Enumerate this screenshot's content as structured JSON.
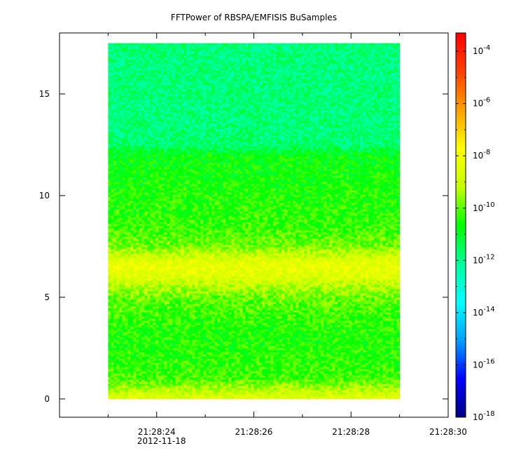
{
  "chart_data": {
    "type": "heatmap",
    "title": "FFTPower of RBSPA/EMFISIS  BuSamples",
    "xlabel": "",
    "ylabel": "",
    "x_ticks": [
      {
        "time": "21:28:24",
        "label": "21:28:24",
        "sublabel": "2012-11-18"
      },
      {
        "time": "21:28:26",
        "label": "21:28:26",
        "sublabel": ""
      },
      {
        "time": "21:28:28",
        "label": "21:28:28",
        "sublabel": ""
      },
      {
        "time": "21:28:30",
        "label": "21:28:30",
        "sublabel": ""
      }
    ],
    "xlim": [
      "21:28:22.0",
      "21:28:30.0"
    ],
    "data_time_range": [
      "21:28:23.0",
      "21:28:29.0"
    ],
    "y_ticks": [
      0,
      5,
      10,
      15
    ],
    "ylim": [
      -0.9,
      18.0
    ],
    "data_y_range": [
      0,
      17.5
    ],
    "zscale": "log",
    "z_ticks": [
      {
        "exp": -18,
        "label": "10",
        "sup": "-18"
      },
      {
        "exp": -16,
        "label": "10",
        "sup": "-16"
      },
      {
        "exp": -14,
        "label": "10",
        "sup": "-14"
      },
      {
        "exp": -12,
        "label": "10",
        "sup": "-12"
      },
      {
        "exp": -10,
        "label": "10",
        "sup": "-10"
      },
      {
        "exp": -8,
        "label": "10",
        "sup": "-8"
      },
      {
        "exp": -6,
        "label": "10",
        "sup": "-6"
      },
      {
        "exp": -4,
        "label": "10",
        "sup": "-4"
      }
    ],
    "zlim_exp": [
      -18,
      -3.3
    ],
    "colormap": [
      "#000080",
      "#0000ff",
      "#00a0ff",
      "#00ffff",
      "#00ff9c",
      "#00ff00",
      "#c8ff00",
      "#ffff00",
      "#ffa000",
      "#ff4000",
      "#ff0000"
    ],
    "power_profile": [
      {
        "freq": 0.0,
        "log_power": -8.5
      },
      {
        "freq": 0.5,
        "log_power": -9.3
      },
      {
        "freq": 1.0,
        "log_power": -10.2
      },
      {
        "freq": 2.0,
        "log_power": -10.4
      },
      {
        "freq": 3.0,
        "log_power": -10.5
      },
      {
        "freq": 4.0,
        "log_power": -10.3
      },
      {
        "freq": 5.0,
        "log_power": -9.9
      },
      {
        "freq": 5.5,
        "log_power": -9.3
      },
      {
        "freq": 6.0,
        "log_power": -8.6
      },
      {
        "freq": 6.5,
        "log_power": -8.2
      },
      {
        "freq": 7.0,
        "log_power": -8.9
      },
      {
        "freq": 7.5,
        "log_power": -9.8
      },
      {
        "freq": 8.5,
        "log_power": -10.3
      },
      {
        "freq": 10.0,
        "log_power": -10.5
      },
      {
        "freq": 11.0,
        "log_power": -10.6
      },
      {
        "freq": 12.0,
        "log_power": -10.8
      },
      {
        "freq": 12.5,
        "log_power": -11.7
      },
      {
        "freq": 14.0,
        "log_power": -11.8
      },
      {
        "freq": 17.5,
        "log_power": -11.8
      }
    ]
  }
}
